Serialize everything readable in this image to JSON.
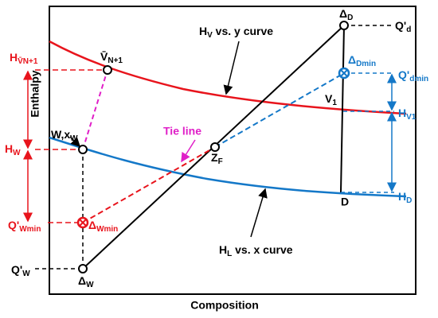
{
  "axes": {
    "y_label": "Enthalpy",
    "x_label": "Composition"
  },
  "curves": {
    "hv": {
      "main": "H",
      "sub": "V",
      "rest": " vs. y curve"
    },
    "hl": {
      "main": "H",
      "sub": "L",
      "rest": " vs. x curve"
    }
  },
  "tie_line": "Tie line",
  "points": {
    "delta_d": {
      "main": "Δ",
      "sub": "D"
    },
    "q_d": {
      "main": "Q'",
      "sub": "d"
    },
    "delta_dmin": {
      "main": "Δ",
      "sub": "Dmin"
    },
    "q_dmin": {
      "main": "Q'",
      "sub": "dmin"
    },
    "v1": {
      "main": "V",
      "sub": "1"
    },
    "h_v1": {
      "main": "H",
      "sub": "V1"
    },
    "d": "D",
    "h_d": {
      "main": "H",
      "sub": "D"
    },
    "z_f": {
      "main": "Z",
      "sub": "F"
    },
    "v_n1": {
      "main": "V̄",
      "sub": "N+1"
    },
    "h_vn1": {
      "main": "H",
      "sub": "V̄N+1"
    },
    "w": {
      "main": "W,x",
      "sub": "W"
    },
    "h_w": {
      "main": "H",
      "sub": "W"
    },
    "q_wmin": {
      "main": "Q'",
      "sub": "Wmin"
    },
    "delta_wmin": {
      "main": "Δ",
      "sub": "Wmin"
    },
    "q_w": {
      "main": "Q'",
      "sub": "W"
    },
    "delta_w": {
      "main": "Δ",
      "sub": "W"
    }
  }
}
